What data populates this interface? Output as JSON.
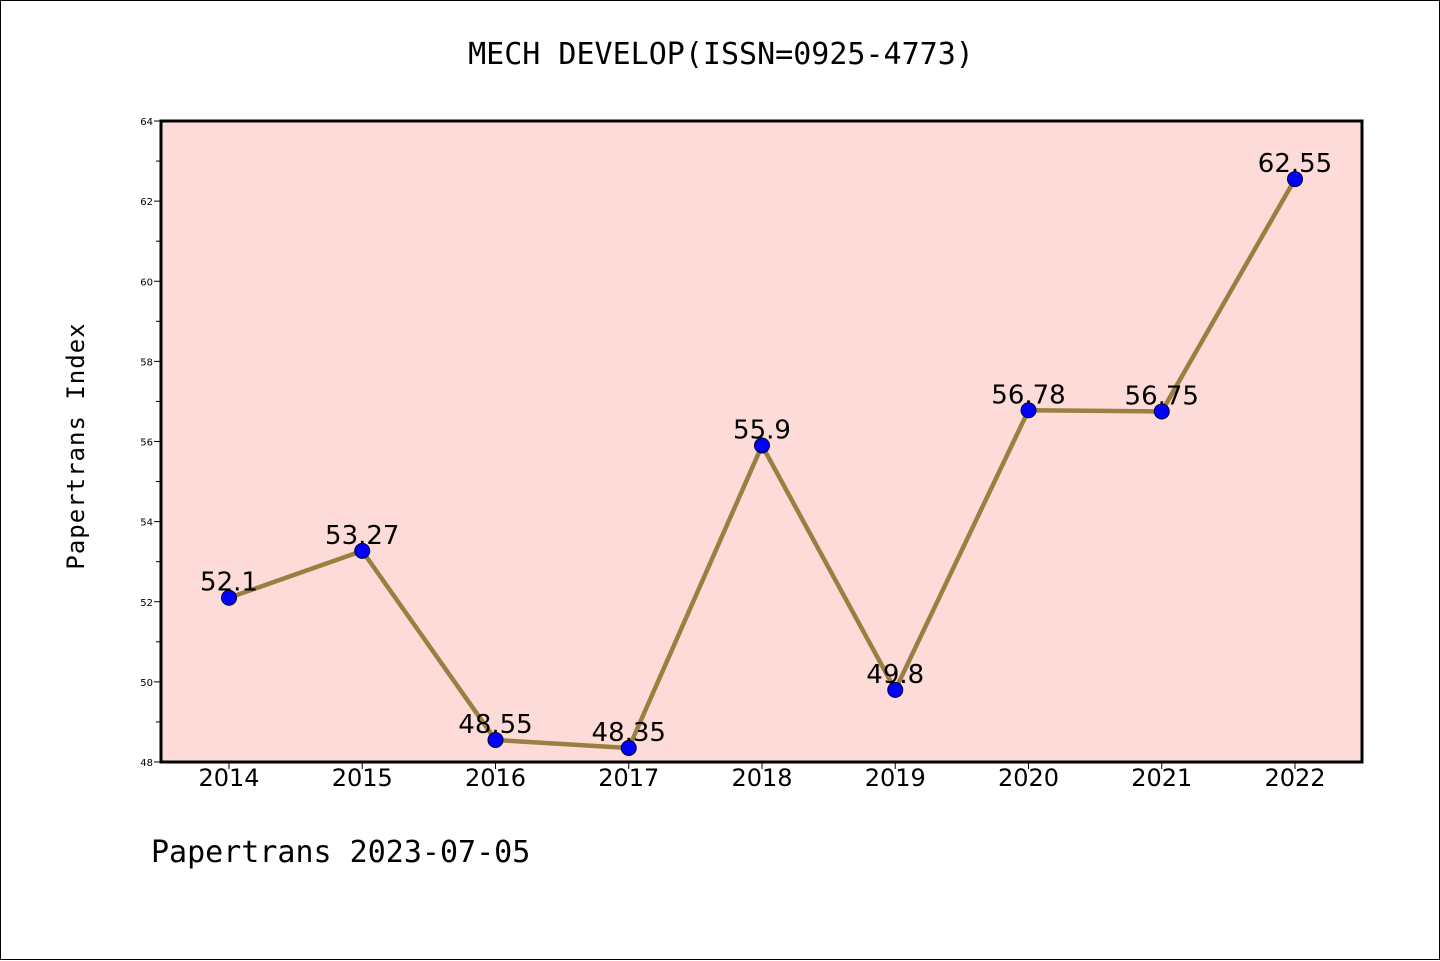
{
  "chart_data": {
    "type": "line",
    "title": "MECH DEVELOP(ISSN=0925-4773)",
    "xlabel": "",
    "ylabel": "Papertrans Index",
    "categories": [
      "2014",
      "2015",
      "2016",
      "2017",
      "2018",
      "2019",
      "2020",
      "2021",
      "2022"
    ],
    "series": [
      {
        "values": [
          52.1,
          53.27,
          48.55,
          48.35,
          55.9,
          49.8,
          56.78,
          56.75,
          62.55
        ],
        "labels": [
          "52.1",
          "53.27",
          "48.55",
          "48.35",
          "55.9",
          "49.8",
          "56.78",
          "56.75",
          "62.55"
        ]
      }
    ],
    "ylim": [
      48,
      64
    ],
    "yticks": [
      "48",
      "50",
      "52",
      "54",
      "56",
      "58",
      "60",
      "62",
      "64"
    ],
    "grid": false,
    "legend": "none"
  },
  "footer": {
    "text": "Papertrans 2023-07-05"
  },
  "colors": {
    "plot_background": "#fddbd9",
    "line": "#9a8040",
    "marker": "#0000ff",
    "axes": "#000000"
  }
}
